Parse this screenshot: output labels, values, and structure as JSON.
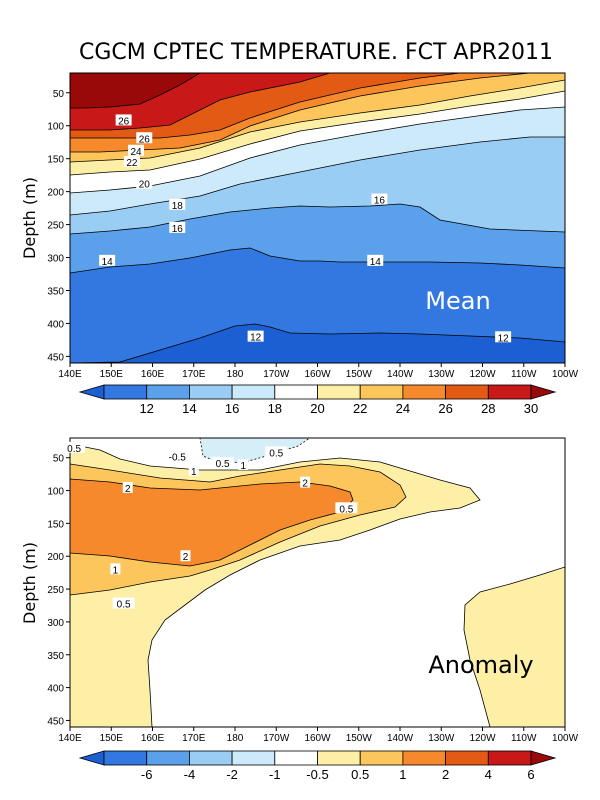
{
  "title": "CGCM CPTEC TEMPERATURE. FCT APR2011",
  "chart_data": [
    {
      "type": "heatmap",
      "name": "mean",
      "annotation": "Mean",
      "ylabel": "Depth (m)",
      "x_ticks": [
        "140E",
        "150E",
        "160E",
        "170E",
        "180",
        "170W",
        "160W",
        "150W",
        "140W",
        "130W",
        "120W",
        "110W",
        "100W"
      ],
      "y_ticks": [
        50,
        100,
        150,
        200,
        250,
        300,
        350,
        400,
        450
      ],
      "ylim": [
        460,
        20
      ],
      "contour_labels": [
        {
          "v": "26",
          "x": 153,
          "y": 92
        },
        {
          "v": "26",
          "x": 158,
          "y": 119
        },
        {
          "v": "24",
          "x": 156,
          "y": 138
        },
        {
          "v": "22",
          "x": 155,
          "y": 155
        },
        {
          "v": "20",
          "x": 158,
          "y": 188
        },
        {
          "v": "18",
          "x": 166,
          "y": 220
        },
        {
          "v": "16",
          "x": 166,
          "y": 255
        },
        {
          "v": "16",
          "x": 215,
          "y": 212
        },
        {
          "v": "14",
          "x": 149,
          "y": 305
        },
        {
          "v": "14",
          "x": 214,
          "y": 305
        },
        {
          "v": "12",
          "x": 185,
          "y": 420
        },
        {
          "v": "12",
          "x": 245,
          "y": 421
        }
      ],
      "colorbar": {
        "labels": [
          "12",
          "14",
          "16",
          "18",
          "20",
          "22",
          "24",
          "26",
          "28",
          "30"
        ],
        "colors": [
          "#1c5fd2",
          "#3378e0",
          "#5aa0ea",
          "#99cdf4",
          "#cdeafb",
          "#ffffff",
          "#fdf0a6",
          "#fdc65c",
          "#f7892d",
          "#e25a13",
          "#c91818",
          "#9a0909"
        ]
      },
      "bands_colors": [
        "#9a0909",
        "#c91818",
        "#e25a13",
        "#f7892d",
        "#fdc65c",
        "#fdf0a6",
        "#ffffff",
        "#cdeafb",
        "#99cdf4",
        "#5aa0ea",
        "#3378e0",
        "#1c5fd2"
      ]
    },
    {
      "type": "heatmap",
      "name": "anomaly",
      "annotation": "Anomaly",
      "ylabel": "Depth (m)",
      "x_ticks": [
        "140E",
        "150E",
        "160E",
        "170E",
        "180",
        "170W",
        "160W",
        "150W",
        "140W",
        "130W",
        "120W",
        "110W",
        "100W"
      ],
      "y_ticks": [
        50,
        100,
        150,
        200,
        250,
        300,
        350,
        400,
        450
      ],
      "ylim": [
        460,
        20
      ],
      "contour_labels": [
        {
          "v": "0.5",
          "x": 141,
          "y": 35
        },
        {
          "v": "-0.5",
          "x": 166,
          "y": 48
        },
        {
          "v": "0.5",
          "x": 177,
          "y": 58
        },
        {
          "v": "0.5",
          "x": 153,
          "y": 272
        },
        {
          "v": "1",
          "x": 170,
          "y": 70
        },
        {
          "v": "1",
          "x": 182,
          "y": 61
        },
        {
          "v": "1",
          "x": 151,
          "y": 220
        },
        {
          "v": "2",
          "x": 154,
          "y": 96
        },
        {
          "v": "2",
          "x": 197,
          "y": 88
        },
        {
          "v": "2",
          "x": 168,
          "y": 200
        },
        {
          "v": "0.5",
          "x": 190,
          "y": 42
        },
        {
          "v": "0.5",
          "x": 207,
          "y": 127
        }
      ],
      "colorbar": {
        "labels": [
          "-6",
          "-4",
          "-2",
          "-1",
          "-0.5",
          "0.5",
          "1",
          "2",
          "4",
          "6"
        ],
        "colors": [
          "#1c5fd2",
          "#3378e0",
          "#5aa0ea",
          "#99cdf4",
          "#cdeafb",
          "#ffffff",
          "#fdf0a6",
          "#fdc65c",
          "#f7892d",
          "#e25a13",
          "#c91818",
          "#9a0909"
        ]
      }
    }
  ]
}
